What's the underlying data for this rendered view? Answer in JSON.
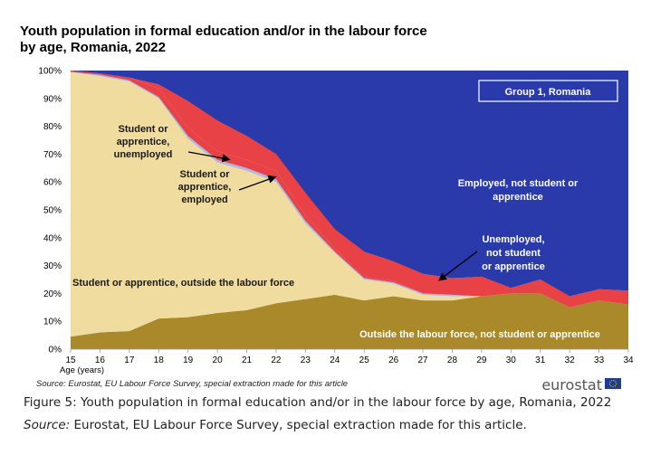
{
  "chart_data": {
    "type": "area",
    "stacked": true,
    "title": "Youth population in formal education and/or in the labour force",
    "title_line2": "by age, Romania, 2022",
    "xlabel": "Age (years)",
    "ylim": [
      0,
      100
    ],
    "yticks": [
      "0%",
      "10%",
      "20%",
      "30%",
      "40%",
      "50%",
      "60%",
      "70%",
      "80%",
      "90%",
      "100%"
    ],
    "x": [
      15,
      16,
      17,
      18,
      19,
      20,
      21,
      22,
      23,
      24,
      25,
      26,
      27,
      28,
      29,
      30,
      31,
      32,
      33,
      34
    ],
    "legend_box": "Group 1, Romania",
    "series": [
      {
        "name": "Outside the labour force, not student or apprentice",
        "color": "#a9892a",
        "values": [
          4.5,
          6,
          6.5,
          11,
          11.5,
          13,
          14,
          16.5,
          18,
          19.5,
          17.5,
          19,
          17.5,
          17.5,
          19,
          20,
          20,
          15,
          17.5,
          16
        ]
      },
      {
        "name": "Student or apprentice, outside the labour force",
        "color": "#f0dc9e",
        "values": [
          95,
          92,
          89.5,
          79,
          64,
          54,
          50,
          43.5,
          27,
          15,
          7.5,
          4.5,
          2,
          1.5,
          0,
          0,
          0,
          0,
          0,
          0
        ]
      },
      {
        "name": "Student or apprentice, employed",
        "color": "#b3b6e6",
        "values": [
          0,
          0.5,
          0.5,
          0.5,
          1,
          1,
          1,
          1,
          1,
          0.5,
          0.5,
          0.5,
          0.5,
          0.5,
          0,
          0,
          0,
          0,
          0,
          0
        ]
      },
      {
        "name": "Student or apprentice, unemployed",
        "color": "#e84146",
        "values": [
          0.5,
          0.5,
          1,
          3,
          3,
          3,
          3,
          3,
          2,
          1,
          0.5,
          0.5,
          0,
          0,
          0,
          0,
          0,
          0,
          0,
          0
        ]
      },
      {
        "name": "Unemployed, not student or apprentice",
        "color": "#e84146",
        "values": [
          0,
          0,
          0,
          1.5,
          9.5,
          11,
          8.5,
          6,
          8,
          7,
          9,
          7,
          7,
          6,
          7,
          2,
          5,
          4,
          4,
          5
        ]
      },
      {
        "name": "Employed, not student or apprentice",
        "color": "#2b3aab",
        "values": [
          0,
          1,
          2.5,
          5,
          11,
          18,
          23.5,
          30,
          44,
          57,
          65,
          68.5,
          73,
          74.5,
          74,
          78,
          75,
          81,
          78.5,
          79
        ]
      }
    ],
    "labels": {
      "outside_lf": "Outside the labour force, not student or apprentice",
      "student_outside": "Student or apprentice, outside the labour force",
      "student_unemp_1": "Student or",
      "student_unemp_2": "apprentice,",
      "student_unemp_3": "unemployed",
      "student_emp_1": "Student or",
      "student_emp_2": "apprentice,",
      "student_emp_3": "employed",
      "employed_1": "Employed, not student or",
      "employed_2": "apprentice",
      "unemployed_1": "Unemployed,",
      "unemployed_2": "not student",
      "unemployed_3": "or apprentice"
    },
    "source": "Source: Eurostat, EU Labour Force Survey, special extraction made for this article",
    "brand": "eurostat"
  },
  "caption": {
    "figure": "Figure 5: Youth population in formal education and/or in the labour force by age, Romania, 2022",
    "source_prefix": "Source:",
    "source_text": " Eurostat, EU Labour Force Survey, special extraction made for this article."
  }
}
